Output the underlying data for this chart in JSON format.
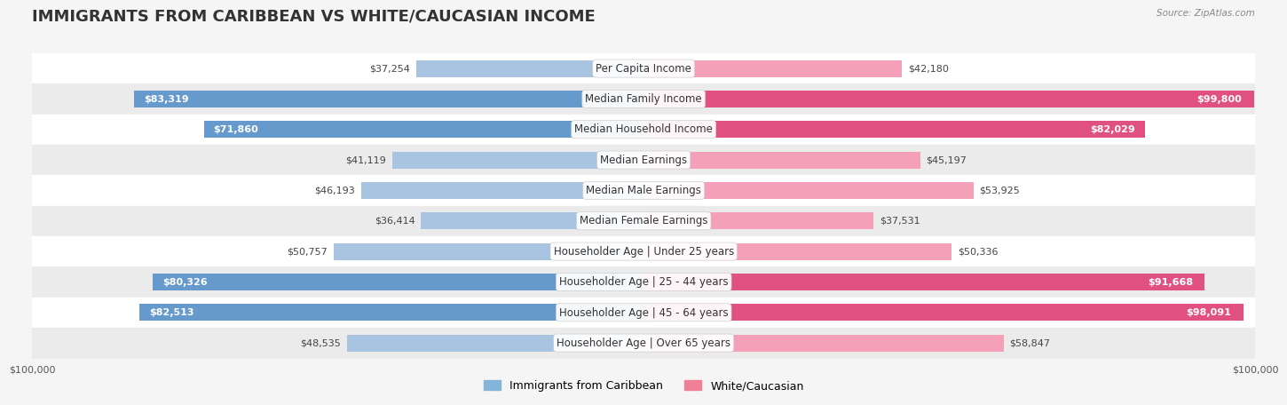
{
  "title": "IMMIGRANTS FROM CARIBBEAN VS WHITE/CAUCASIAN INCOME",
  "source": "Source: ZipAtlas.com",
  "categories": [
    "Per Capita Income",
    "Median Family Income",
    "Median Household Income",
    "Median Earnings",
    "Median Male Earnings",
    "Median Female Earnings",
    "Householder Age | Under 25 years",
    "Householder Age | 25 - 44 years",
    "Householder Age | 45 - 64 years",
    "Householder Age | Over 65 years"
  ],
  "caribbean_values": [
    37254,
    83319,
    71860,
    41119,
    46193,
    36414,
    50757,
    80326,
    82513,
    48535
  ],
  "white_values": [
    42180,
    99800,
    82029,
    45197,
    53925,
    37531,
    50336,
    91668,
    98091,
    58847
  ],
  "caribbean_labels": [
    "$37,254",
    "$83,319",
    "$71,860",
    "$41,119",
    "$46,193",
    "$36,414",
    "$50,757",
    "$80,326",
    "$82,513",
    "$48,535"
  ],
  "white_labels": [
    "$42,180",
    "$99,800",
    "$82,029",
    "$45,197",
    "$53,925",
    "$37,531",
    "$50,336",
    "$91,668",
    "$98,091",
    "$58,847"
  ],
  "max_value": 100000,
  "caribbean_color_light": "#a8c4e0",
  "caribbean_color_dark": "#6699cc",
  "white_color_light": "#f4a0b8",
  "white_color_dark": "#e05080",
  "legend_caribbean_color": "#85b4d9",
  "legend_white_color": "#f08098",
  "background_color": "#f5f5f5",
  "row_bg_light": "#ffffff",
  "row_bg_dark": "#ebebeb",
  "title_fontsize": 13,
  "label_fontsize": 8,
  "category_fontsize": 8.5,
  "axis_fontsize": 8
}
